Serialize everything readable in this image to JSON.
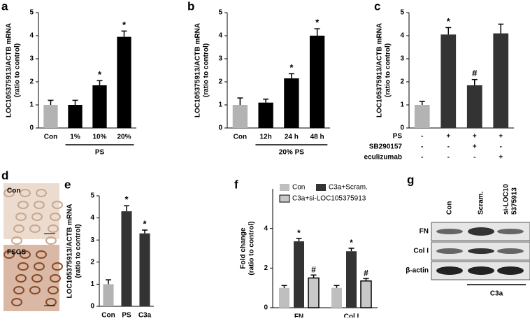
{
  "chart_data": [
    {
      "panel": "a",
      "type": "bar",
      "ylabel": "LOC105375913/ACTB mRNA",
      "ylabel2": "(ratio to control)",
      "categories": [
        "Con",
        "1%",
        "10%",
        "20%"
      ],
      "values": [
        1.0,
        1.0,
        1.85,
        3.95
      ],
      "errors": [
        0.2,
        0.2,
        0.2,
        0.25
      ],
      "colors": [
        "#b3b3b3",
        "#000000",
        "#000000",
        "#000000"
      ],
      "annotations": [
        null,
        null,
        "*",
        "*"
      ],
      "group_label": "PS",
      "ylim": [
        0,
        5
      ],
      "yticks": [
        0,
        1,
        2,
        3,
        4,
        5
      ]
    },
    {
      "panel": "b",
      "type": "bar",
      "ylabel": "LOC105375913/ACTB mRNA",
      "ylabel2": "(ratio to control)",
      "categories": [
        "Con",
        "12h",
        "24 h",
        "48 h"
      ],
      "values": [
        1.0,
        1.1,
        2.15,
        4.0
      ],
      "errors": [
        0.3,
        0.15,
        0.2,
        0.3
      ],
      "colors": [
        "#b3b3b3",
        "#000000",
        "#000000",
        "#000000"
      ],
      "annotations": [
        null,
        null,
        "*",
        "*"
      ],
      "group_label": "20% PS",
      "ylim": [
        0,
        5
      ],
      "yticks": [
        0,
        1,
        2,
        3,
        4,
        5
      ]
    },
    {
      "panel": "c",
      "type": "bar",
      "ylabel": "LOC105375913/ACTB mRNA",
      "ylabel2": "(ratio to control)",
      "values": [
        1.0,
        4.05,
        1.85,
        4.1
      ],
      "errors": [
        0.15,
        0.3,
        0.25,
        0.4
      ],
      "colors": [
        "#b3b3b3",
        "#333333",
        "#333333",
        "#333333"
      ],
      "annotations": [
        null,
        "*",
        "#",
        null
      ],
      "conditions": [
        {
          "name": "PS",
          "marks": [
            "-",
            "+",
            "+",
            "+"
          ]
        },
        {
          "name": "SB290157",
          "marks": [
            "-",
            "-",
            "+",
            "-"
          ]
        },
        {
          "name": "eculizumab",
          "marks": [
            "-",
            "-",
            "-",
            "+"
          ]
        }
      ],
      "ylim": [
        0,
        5
      ],
      "yticks": [
        0,
        1,
        2,
        3,
        4,
        5
      ]
    },
    {
      "panel": "d",
      "type": "micrograph",
      "labels": [
        "Con",
        "FSGS"
      ]
    },
    {
      "panel": "e",
      "type": "bar",
      "ylabel": "LOC105375913/ACTB mRNA",
      "ylabel2": "(ratio to control)",
      "categories": [
        "Con",
        "PS",
        "C3a"
      ],
      "values": [
        1.0,
        4.3,
        3.3
      ],
      "errors": [
        0.2,
        0.25,
        0.15
      ],
      "colors": [
        "#b3b3b3",
        "#333333",
        "#333333"
      ],
      "annotations": [
        null,
        "*",
        "*"
      ],
      "ylim": [
        0,
        5
      ],
      "yticks": [
        0,
        1,
        2,
        3,
        4,
        5
      ]
    },
    {
      "panel": "f",
      "type": "grouped_bar",
      "ylabel": "Fold change",
      "ylabel2": "(ratio to control)",
      "categories": [
        "FN",
        "Col I"
      ],
      "series": [
        {
          "name": "Con",
          "color": "#bfbfbf",
          "values": [
            1.0,
            1.0
          ],
          "errors": [
            0.12,
            0.12
          ],
          "annotations": [
            null,
            null
          ]
        },
        {
          "name": "C3a+Scram.",
          "color": "#333333",
          "values": [
            3.35,
            2.85
          ],
          "errors": [
            0.15,
            0.15
          ],
          "annotations": [
            "*",
            "*"
          ]
        },
        {
          "name": "C3a+si-LOC105375913",
          "color": "#c8c8c8",
          "values": [
            1.5,
            1.35
          ],
          "errors": [
            0.15,
            0.12
          ],
          "annotations": [
            "#",
            "#"
          ]
        }
      ],
      "ylim": [
        0,
        6
      ],
      "yticks": [
        0,
        2,
        4
      ]
    },
    {
      "panel": "g",
      "type": "blot",
      "columns": [
        [
          "Con"
        ],
        [
          "Scram."
        ],
        [
          "si-LOC10",
          "5375913"
        ]
      ],
      "rows": [
        "FN",
        "Col I",
        "β-actin"
      ],
      "treatment": "C3a"
    }
  ]
}
